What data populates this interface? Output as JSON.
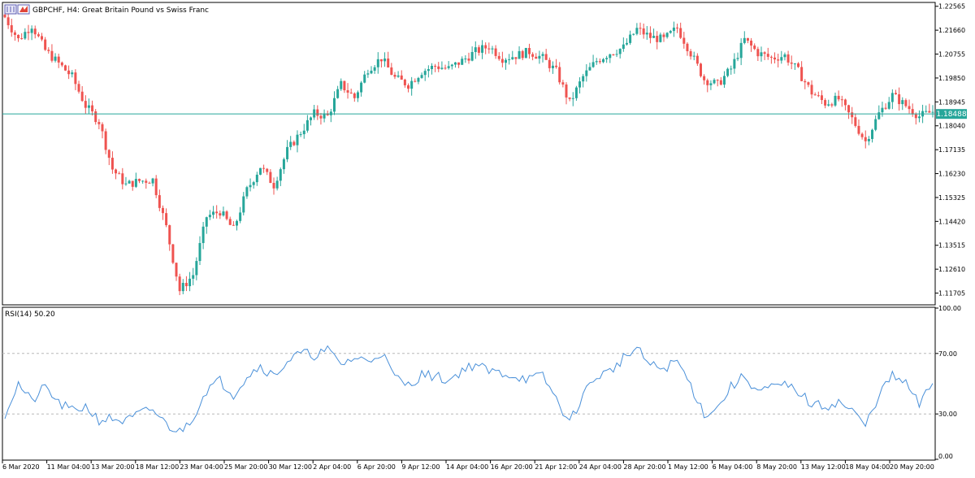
{
  "window": {
    "symbol_title": "GBPCHF, H4:  Great Britain Pound vs Swiss Franc"
  },
  "colors": {
    "bull": "#26a69a",
    "bear": "#ef5350",
    "rsi_line": "#4a90d9",
    "current_price_line": "#26a69a",
    "level_line": "#b8b8b8",
    "frame": "#000000"
  },
  "icons": [
    "chart-properties-icon",
    "bid-ask-icon"
  ],
  "chart_data": [
    {
      "type": "candlestick",
      "ylim": [
        1.1126,
        1.2268
      ],
      "y_ticks": [
        "1.22565",
        "1.21660",
        "1.20755",
        "1.19850",
        "1.18945",
        "1.18040",
        "1.17135",
        "1.16230",
        "1.15325",
        "1.14420",
        "1.13515",
        "1.12610",
        "1.11705"
      ],
      "current_price": 1.18488,
      "current_price_label": "1.18488",
      "x_tick_labels": [
        "6 Mar 2020",
        "11 Mar 04:00",
        "13 Mar 20:00",
        "18 Mar 12:00",
        "23 Mar 04:00",
        "25 Mar 20:00",
        "30 Mar 12:00",
        "2 Apr 04:00",
        "6 Apr 20:00",
        "9 Apr 12:00",
        "14 Apr 04:00",
        "16 Apr 20:00",
        "21 Apr 12:00",
        "24 Apr 04:00",
        "28 Apr 20:00",
        "1 May 12:00",
        "6 May 04:00",
        "8 May 20:00",
        "13 May 12:00",
        "18 May 04:00",
        "20 May 20:00"
      ],
      "close_path_points": [
        [
          0,
          1.2215
        ],
        [
          4,
          1.213
        ],
        [
          8,
          1.2185
        ],
        [
          12,
          1.209
        ],
        [
          16,
          1.204
        ],
        [
          20,
          1.199
        ],
        [
          24,
          1.188
        ],
        [
          28,
          1.182
        ],
        [
          32,
          1.164
        ],
        [
          36,
          1.158
        ],
        [
          40,
          1.1595
        ],
        [
          44,
          1.16
        ],
        [
          48,
          1.142
        ],
        [
          52,
          1.118
        ],
        [
          56,
          1.124
        ],
        [
          60,
          1.146
        ],
        [
          64,
          1.148
        ],
        [
          68,
          1.141
        ],
        [
          72,
          1.156
        ],
        [
          76,
          1.165
        ],
        [
          80,
          1.158
        ],
        [
          84,
          1.171
        ],
        [
          88,
          1.178
        ],
        [
          92,
          1.185
        ],
        [
          96,
          1.184
        ],
        [
          100,
          1.196
        ],
        [
          104,
          1.191
        ],
        [
          108,
          1.202
        ],
        [
          112,
          1.206
        ],
        [
          116,
          1.1985
        ],
        [
          120,
          1.196
        ],
        [
          124,
          1.201
        ],
        [
          128,
          1.203
        ],
        [
          132,
          1.202
        ],
        [
          136,
          1.205
        ],
        [
          140,
          1.2085
        ],
        [
          144,
          1.2105
        ],
        [
          148,
          1.206
        ],
        [
          152,
          1.207
        ],
        [
          156,
          1.2085
        ],
        [
          160,
          1.206
        ],
        [
          164,
          1.201
        ],
        [
          168,
          1.189
        ],
        [
          172,
          1.199
        ],
        [
          176,
          1.205
        ],
        [
          180,
          1.208
        ],
        [
          184,
          1.21
        ],
        [
          188,
          1.217
        ],
        [
          192,
          1.214
        ],
        [
          196,
          1.213
        ],
        [
          200,
          1.2175
        ],
        [
          204,
          1.208
        ],
        [
          208,
          1.198
        ],
        [
          212,
          1.196
        ],
        [
          216,
          1.202
        ],
        [
          220,
          1.213
        ],
        [
          224,
          1.208
        ],
        [
          228,
          1.206
        ],
        [
          232,
          1.207
        ],
        [
          236,
          1.201
        ],
        [
          240,
          1.193
        ],
        [
          244,
          1.189
        ],
        [
          248,
          1.1905
        ],
        [
          252,
          1.183
        ],
        [
          256,
          1.1745
        ],
        [
          260,
          1.185
        ],
        [
          264,
          1.192
        ],
        [
          268,
          1.188
        ],
        [
          272,
          1.184
        ],
        [
          276,
          1.1858
        ]
      ]
    },
    {
      "type": "line",
      "series": [
        {
          "name": "RSI(14) 50.20",
          "last_value": 50.2
        }
      ],
      "ylim": [
        0,
        100
      ],
      "y_ticks": [
        "100.00",
        "70.00",
        "30.00",
        "0.00"
      ],
      "levels": [
        70,
        30
      ],
      "values_path_points": [
        [
          0,
          30
        ],
        [
          4,
          50
        ],
        [
          8,
          38
        ],
        [
          12,
          48
        ],
        [
          16,
          37
        ],
        [
          20,
          32
        ],
        [
          24,
          35
        ],
        [
          28,
          26
        ],
        [
          32,
          27
        ],
        [
          36,
          25
        ],
        [
          40,
          30
        ],
        [
          44,
          33
        ],
        [
          48,
          23
        ],
        [
          52,
          18
        ],
        [
          56,
          28
        ],
        [
          60,
          46
        ],
        [
          64,
          52
        ],
        [
          68,
          43
        ],
        [
          72,
          55
        ],
        [
          76,
          62
        ],
        [
          80,
          55
        ],
        [
          84,
          65
        ],
        [
          88,
          70
        ],
        [
          92,
          69
        ],
        [
          96,
          72
        ],
        [
          100,
          63
        ],
        [
          104,
          67
        ],
        [
          108,
          65
        ],
        [
          112,
          71
        ],
        [
          116,
          54
        ],
        [
          120,
          49
        ],
        [
          124,
          56
        ],
        [
          128,
          55
        ],
        [
          132,
          52
        ],
        [
          136,
          59
        ],
        [
          140,
          63
        ],
        [
          144,
          58
        ],
        [
          148,
          57
        ],
        [
          152,
          55
        ],
        [
          156,
          53
        ],
        [
          160,
          55
        ],
        [
          164,
          40
        ],
        [
          168,
          24
        ],
        [
          172,
          43
        ],
        [
          176,
          55
        ],
        [
          180,
          58
        ],
        [
          184,
          67
        ],
        [
          188,
          73
        ],
        [
          192,
          62
        ],
        [
          196,
          60
        ],
        [
          200,
          65
        ],
        [
          204,
          49
        ],
        [
          208,
          30
        ],
        [
          212,
          34
        ],
        [
          216,
          48
        ],
        [
          220,
          55
        ],
        [
          224,
          45
        ],
        [
          228,
          47
        ],
        [
          232,
          49
        ],
        [
          236,
          45
        ],
        [
          240,
          36
        ],
        [
          244,
          35
        ],
        [
          248,
          38
        ],
        [
          252,
          32
        ],
        [
          256,
          22
        ],
        [
          260,
          43
        ],
        [
          264,
          55
        ],
        [
          268,
          50
        ],
        [
          272,
          36
        ],
        [
          276,
          50.2
        ]
      ]
    }
  ]
}
